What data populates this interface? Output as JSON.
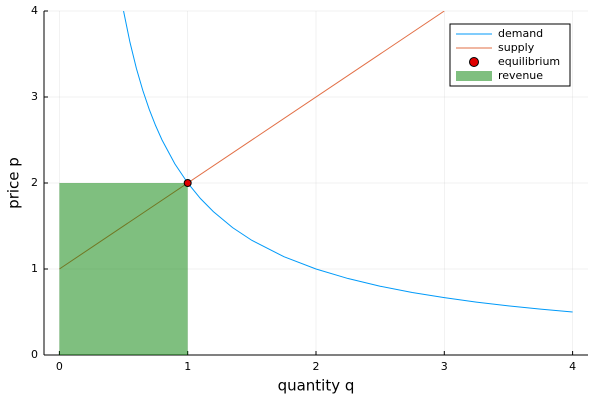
{
  "chart_data": {
    "type": "line",
    "xlabel": "quantity q",
    "ylabel": "price p",
    "xlim": [
      -0.12,
      4.12
    ],
    "ylim": [
      0,
      4
    ],
    "xticks": [
      0,
      1,
      2,
      3,
      4
    ],
    "yticks": [
      0,
      1,
      2,
      3,
      4
    ],
    "grid": true,
    "legend": "top-right",
    "series": [
      {
        "name": "demand",
        "type": "line",
        "color": "#009af9",
        "x": [
          0.5,
          0.55,
          0.6,
          0.65,
          0.7,
          0.75,
          0.8,
          0.9,
          1,
          1.1,
          1.2,
          1.35,
          1.5,
          1.75,
          2,
          2.25,
          2.5,
          2.75,
          3,
          3.25,
          3.5,
          3.75,
          4
        ],
        "values": [
          4,
          3.636,
          3.333,
          3.077,
          2.857,
          2.667,
          2.5,
          2.222,
          2,
          1.818,
          1.667,
          1.481,
          1.333,
          1.143,
          1,
          0.889,
          0.8,
          0.727,
          0.667,
          0.615,
          0.571,
          0.533,
          0.5
        ]
      },
      {
        "name": "supply",
        "type": "line",
        "color": "#e26f46",
        "x": [
          0,
          3
        ],
        "values": [
          1,
          4
        ]
      },
      {
        "name": "revenue",
        "type": "area",
        "color": "#008000",
        "opacity": 0.5,
        "x": [
          0,
          1
        ],
        "values": [
          2,
          2
        ]
      },
      {
        "name": "equilibrium",
        "type": "scatter",
        "color": "#e00000",
        "x": [
          1
        ],
        "values": [
          2
        ]
      }
    ]
  }
}
